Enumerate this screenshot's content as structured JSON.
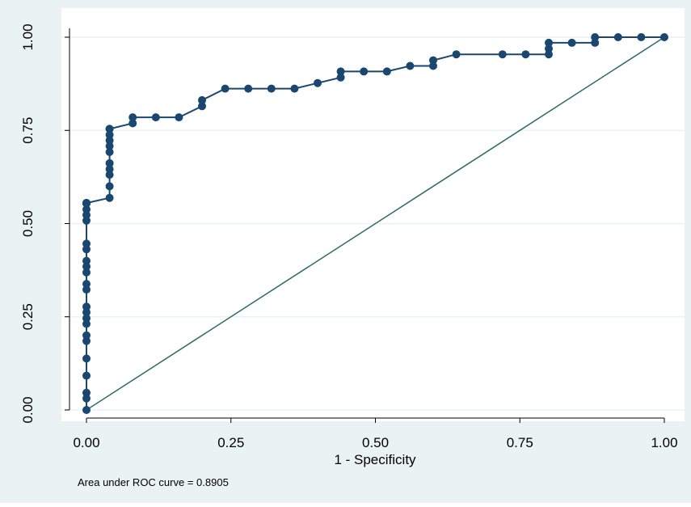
{
  "chart_data": {
    "type": "line",
    "title": "",
    "xlabel": "1 - Specificity",
    "ylabel": "",
    "xlim": [
      0,
      1
    ],
    "ylim": [
      0,
      1
    ],
    "xticks": [
      "0.00",
      "0.25",
      "0.50",
      "0.75",
      "1.00"
    ],
    "yticks": [
      "0.00",
      "0.25",
      "0.50",
      "0.75",
      "1.00"
    ],
    "grid": "horizontal",
    "note": "Area under ROC curve = 0.8905",
    "colors": {
      "background": "#eaf2f3",
      "plot_area": "#ffffff",
      "grid": "#eaf2f3",
      "roc_line": "#1a476f",
      "reference_line": "#2d6d66"
    },
    "series": [
      {
        "type": "line-marker",
        "x": [
          0,
          0,
          0,
          0,
          0,
          0,
          0,
          0,
          0,
          0,
          0,
          0,
          0,
          0,
          0,
          0,
          0,
          0,
          0,
          0,
          0,
          0,
          0,
          0,
          0,
          0,
          0,
          0,
          0,
          0,
          0.04,
          0.04,
          0.04,
          0.04,
          0.04,
          0.04,
          0.04,
          0.04,
          0.04,
          0.04,
          0.04,
          0.08,
          0.08,
          0.12,
          0.16,
          0.2,
          0.2,
          0.24,
          0.28,
          0.32,
          0.36,
          0.4,
          0.44,
          0.44,
          0.48,
          0.52,
          0.56,
          0.6,
          0.6,
          0.64,
          0.72,
          0.76,
          0.8,
          0.8,
          0.8,
          0.84,
          0.88,
          0.88,
          0.92,
          0.96,
          1.0
        ],
        "y": [
          0,
          0.031,
          0.046,
          0.092,
          0.138,
          0.185,
          0.2,
          0.231,
          0.246,
          0.262,
          0.277,
          0.323,
          0.338,
          0.369,
          0.385,
          0.4,
          0.431,
          0.446,
          0.508,
          0.523,
          0.538,
          0.554,
          0.555,
          0.555,
          0.555,
          0.555,
          0.555,
          0.555,
          0.555,
          0.555,
          0.569,
          0.6,
          0.631,
          0.646,
          0.662,
          0.692,
          0.708,
          0.723,
          0.738,
          0.754,
          0.754,
          0.769,
          0.785,
          0.785,
          0.785,
          0.815,
          0.831,
          0.862,
          0.862,
          0.862,
          0.862,
          0.877,
          0.892,
          0.908,
          0.908,
          0.908,
          0.923,
          0.923,
          0.938,
          0.954,
          0.954,
          0.954,
          0.954,
          0.969,
          0.985,
          0.985,
          0.985,
          1.0,
          1.0,
          1.0,
          1.0
        ]
      },
      {
        "type": "reference-line",
        "x": [
          0,
          1
        ],
        "y": [
          0,
          1
        ]
      }
    ]
  }
}
